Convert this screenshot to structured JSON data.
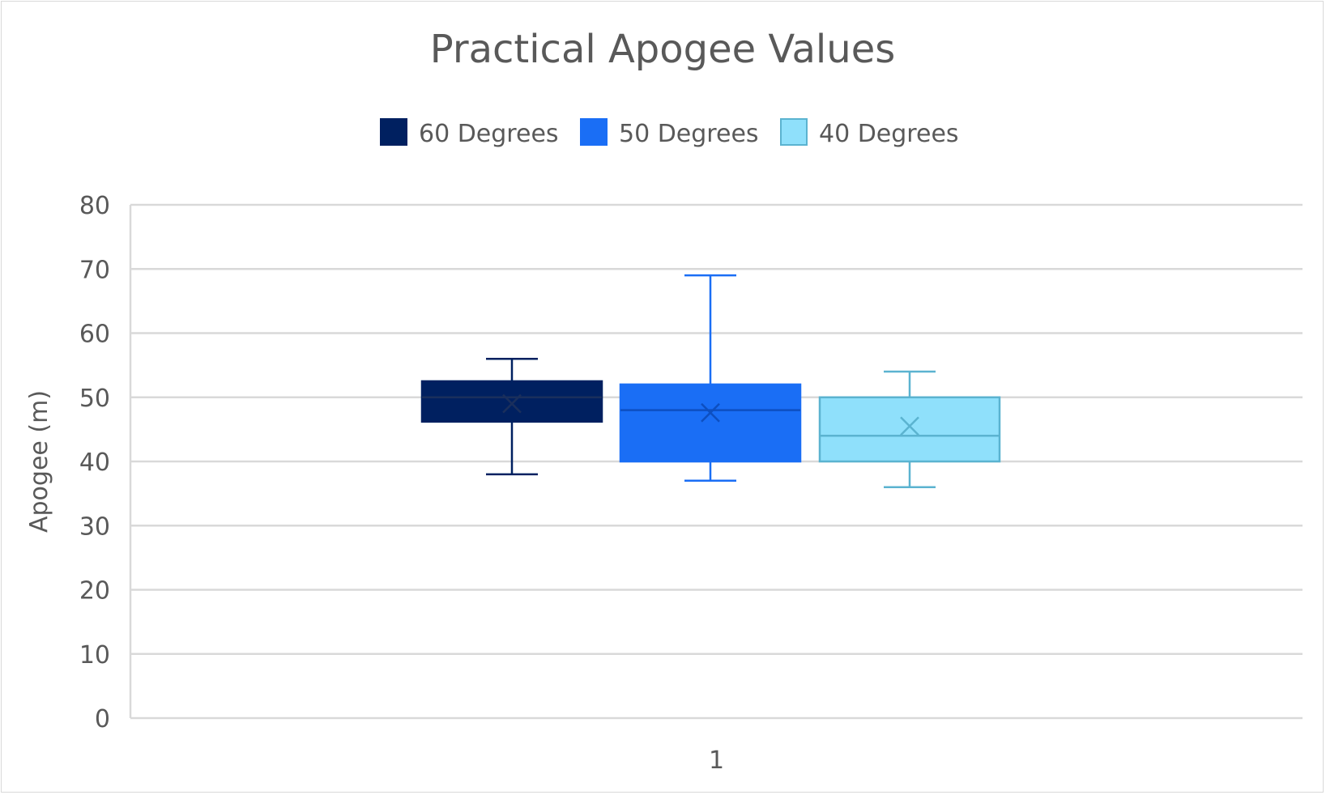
{
  "chart_data": {
    "type": "box",
    "title": "Practical Apogee Values",
    "xlabel": "",
    "ylabel": "Apogee (m)",
    "ylim": [
      0,
      80
    ],
    "yticks": [
      0,
      10,
      20,
      30,
      40,
      50,
      60,
      70,
      80
    ],
    "categories": [
      "1"
    ],
    "grid": true,
    "legend_position": "top",
    "series": [
      {
        "name": "60 Degrees",
        "color": "#002060",
        "min": 38,
        "q1": 46.2,
        "median": 50,
        "q3": 52.5,
        "max": 56,
        "mean": 49
      },
      {
        "name": "50 Degrees",
        "color": "#1a6ef5",
        "min": 37,
        "q1": 40,
        "median": 48,
        "q3": 52,
        "max": 69,
        "mean": 47.6
      },
      {
        "name": "40 Degrees",
        "color": "#8fe0fb",
        "stroke": "#5bb3d0",
        "min": 36,
        "q1": 40,
        "median": 44,
        "q3": 50,
        "max": 54,
        "mean": 45.5
      }
    ]
  }
}
